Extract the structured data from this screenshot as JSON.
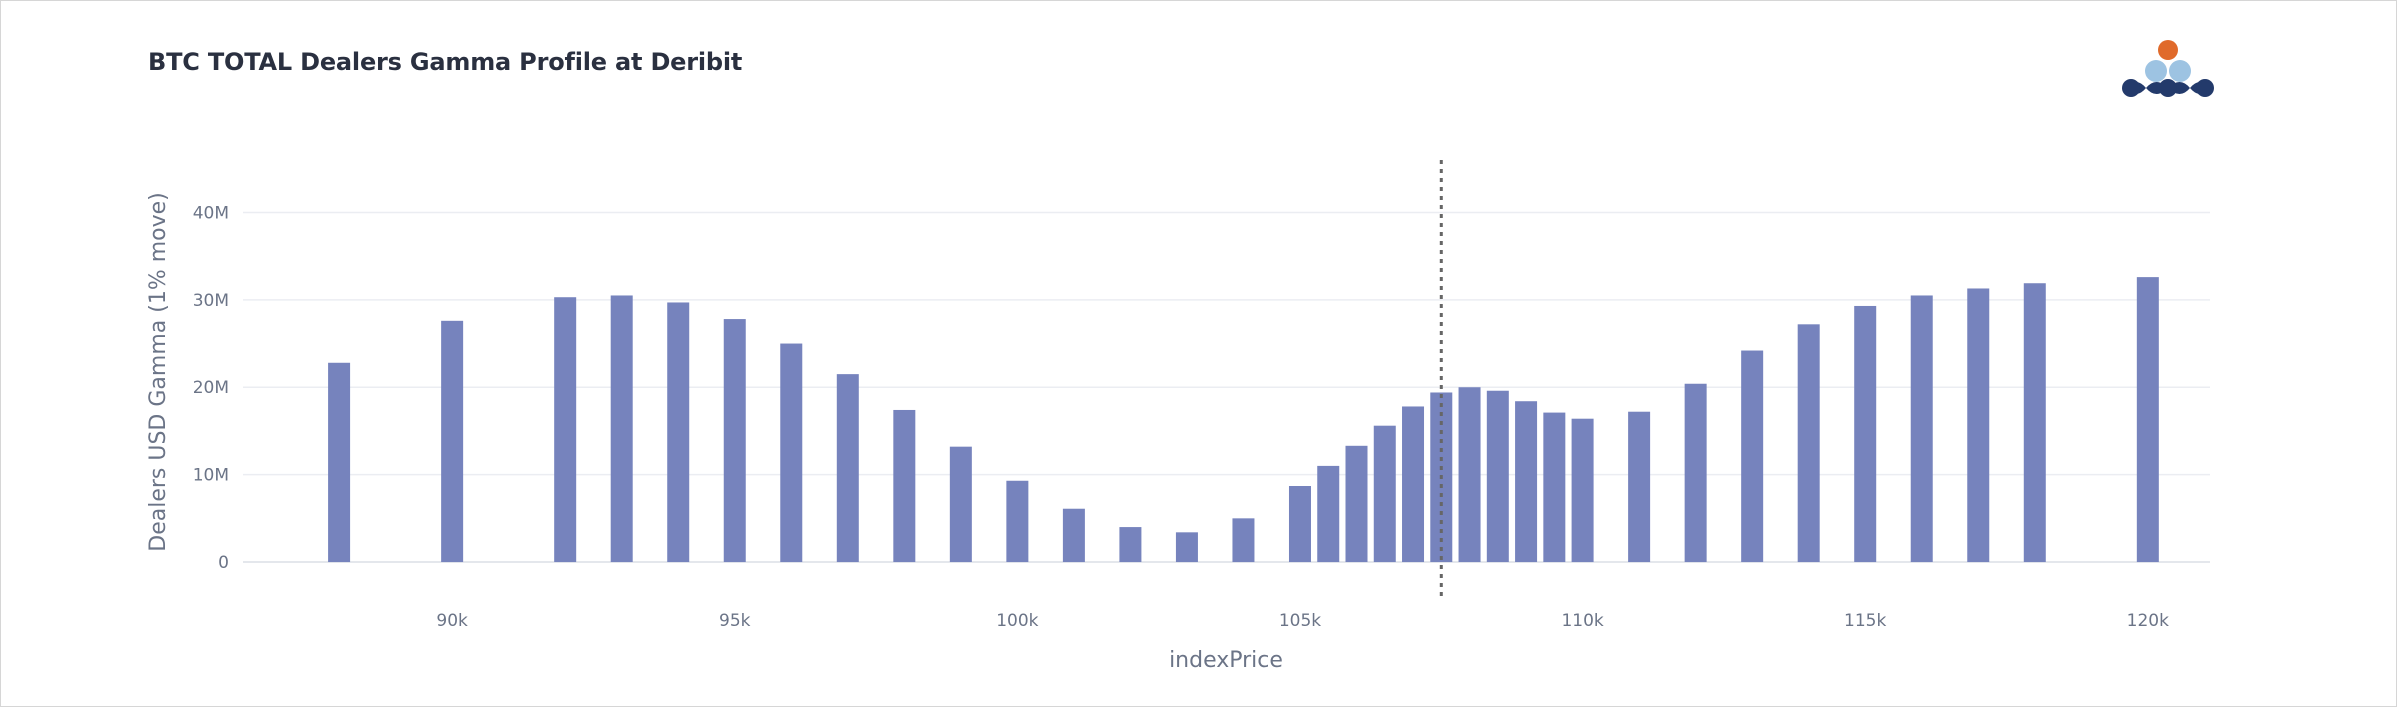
{
  "title": "BTC TOTAL Dealers Gamma Profile at Deribit",
  "logo": {
    "icon": "company-logo-icon",
    "colors": {
      "dot": "#e06a2b",
      "light": "#9dc3e2",
      "dark": "#233a6b"
    }
  },
  "chart_data": {
    "type": "bar",
    "title": "BTC TOTAL Dealers Gamma Profile at Deribit",
    "xlabel": "indexPrice",
    "ylabel": "Dealers USD Gamma (1% move)",
    "xlim": [
      86300,
      121100
    ],
    "ylim": [
      -4000000,
      46000000
    ],
    "x_ticks": [
      90000,
      95000,
      100000,
      105000,
      110000,
      115000,
      120000
    ],
    "x_tick_labels": [
      "90k",
      "95k",
      "100k",
      "105k",
      "110k",
      "115k",
      "120k"
    ],
    "y_ticks": [
      0,
      10000000,
      20000000,
      30000000,
      40000000
    ],
    "y_tick_labels": [
      "0",
      "10M",
      "20M",
      "30M",
      "40M"
    ],
    "grid": true,
    "bar_color": "#7683bd",
    "spot_line": {
      "x": 107500,
      "style": "dotted",
      "color": "#666666"
    },
    "x": [
      88000,
      90000,
      92000,
      93000,
      94000,
      95000,
      96000,
      97000,
      98000,
      99000,
      100000,
      101000,
      102000,
      103000,
      104000,
      105000,
      105500,
      106000,
      106500,
      107000,
      107500,
      108000,
      108500,
      109000,
      109500,
      110000,
      111000,
      112000,
      113000,
      114000,
      115000,
      116000,
      117000,
      118000,
      120000
    ],
    "values": [
      22800000,
      27600000,
      30300000,
      30500000,
      29700000,
      27800000,
      25000000,
      21500000,
      17400000,
      13200000,
      9300000,
      6100000,
      4000000,
      3400000,
      5000000,
      8700000,
      11000000,
      13300000,
      15600000,
      17800000,
      19400000,
      20000000,
      19600000,
      18400000,
      17100000,
      16400000,
      17200000,
      20400000,
      24200000,
      27200000,
      29300000,
      30500000,
      31300000,
      31900000,
      32600000
    ]
  }
}
